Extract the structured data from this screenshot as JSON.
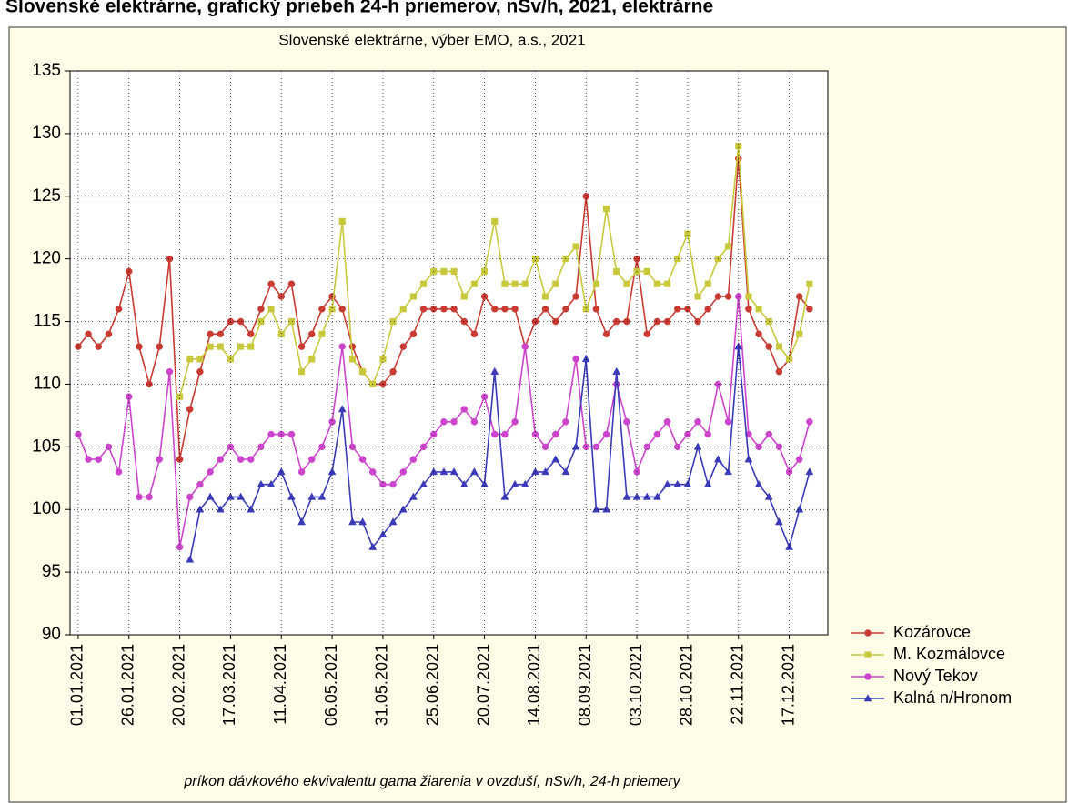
{
  "chart_data": {
    "type": "line",
    "page_title": "Slovenské elektrárne, grafický priebeh 24-h priemerov, nSv/h, 2021, elektrárne",
    "title": "Slovenské elektrárne, výber EMO, a.s., 2021",
    "xlabel": "príkon dávkového ekvivalentu gama žiarenia v ovzduší, nSv/h, 24-h priemery",
    "x": [
      "2021-01-01",
      "2021-01-06",
      "2021-01-11",
      "2021-01-16",
      "2021-01-21",
      "2021-01-26",
      "2021-01-31",
      "2021-02-05",
      "2021-02-10",
      "2021-02-15",
      "2021-02-20",
      "2021-02-25",
      "2021-03-02",
      "2021-03-07",
      "2021-03-12",
      "2021-03-17",
      "2021-03-22",
      "2021-03-27",
      "2021-04-01",
      "2021-04-06",
      "2021-04-11",
      "2021-04-16",
      "2021-04-21",
      "2021-04-26",
      "2021-05-01",
      "2021-05-06",
      "2021-05-11",
      "2021-05-16",
      "2021-05-21",
      "2021-05-26",
      "2021-05-31",
      "2021-06-05",
      "2021-06-10",
      "2021-06-15",
      "2021-06-20",
      "2021-06-25",
      "2021-06-30",
      "2021-07-05",
      "2021-07-10",
      "2021-07-15",
      "2021-07-20",
      "2021-07-25",
      "2021-07-30",
      "2021-08-04",
      "2021-08-09",
      "2021-08-14",
      "2021-08-19",
      "2021-08-24",
      "2021-08-29",
      "2021-09-03",
      "2021-09-08",
      "2021-09-13",
      "2021-09-18",
      "2021-09-23",
      "2021-09-28",
      "2021-10-03",
      "2021-10-08",
      "2021-10-13",
      "2021-10-18",
      "2021-10-23",
      "2021-10-28",
      "2021-11-02",
      "2021-11-07",
      "2021-11-12",
      "2021-11-17",
      "2021-11-22",
      "2021-11-27",
      "2021-12-02",
      "2021-12-07",
      "2021-12-12",
      "2021-12-17",
      "2021-12-22",
      "2021-12-27"
    ],
    "series": [
      {
        "name": "Kozárovce",
        "color": "#c83a32",
        "marker": "circle",
        "values": [
          113,
          114,
          113,
          114,
          116,
          119,
          113,
          110,
          113,
          120,
          104,
          108,
          111,
          114,
          114,
          115,
          115,
          114,
          116,
          118,
          117,
          118,
          113,
          114,
          116,
          117,
          116,
          113,
          111,
          110,
          110,
          111,
          113,
          114,
          116,
          116,
          116,
          116,
          115,
          114,
          117,
          116,
          116,
          116,
          113,
          115,
          116,
          115,
          116,
          117,
          125,
          116,
          114,
          115,
          115,
          120,
          114,
          115,
          115,
          116,
          116,
          115,
          116,
          117,
          117,
          128,
          116,
          114,
          113,
          111,
          112,
          117,
          116
        ]
      },
      {
        "name": "M. Kozmálovce",
        "color": "#c8c83c",
        "marker": "square",
        "values": [
          null,
          null,
          null,
          null,
          null,
          null,
          null,
          null,
          null,
          null,
          109,
          112,
          112,
          113,
          113,
          112,
          113,
          113,
          115,
          116,
          114,
          115,
          111,
          112,
          114,
          116,
          123,
          112,
          111,
          110,
          112,
          115,
          116,
          117,
          118,
          119,
          119,
          119,
          117,
          118,
          119,
          123,
          118,
          118,
          118,
          120,
          117,
          118,
          120,
          121,
          116,
          118,
          124,
          119,
          118,
          119,
          119,
          118,
          118,
          120,
          122,
          117,
          118,
          120,
          121,
          129,
          117,
          116,
          115,
          113,
          112,
          114,
          118
        ]
      },
      {
        "name": "Nový Tekov",
        "color": "#cc44cc",
        "marker": "circle",
        "values": [
          106,
          104,
          104,
          105,
          103,
          109,
          101,
          101,
          104,
          111,
          97,
          101,
          102,
          103,
          104,
          105,
          104,
          104,
          105,
          106,
          106,
          106,
          103,
          104,
          105,
          107,
          113,
          105,
          104,
          103,
          102,
          102,
          103,
          104,
          105,
          106,
          107,
          107,
          108,
          107,
          109,
          106,
          106,
          107,
          113,
          106,
          105,
          106,
          107,
          112,
          105,
          105,
          106,
          110,
          107,
          103,
          105,
          106,
          107,
          105,
          106,
          107,
          106,
          110,
          107,
          117,
          106,
          105,
          106,
          105,
          103,
          104,
          107
        ]
      },
      {
        "name": "Kalná n/Hronom",
        "color": "#3a3ab8",
        "marker": "triangle",
        "values": [
          null,
          null,
          null,
          null,
          null,
          null,
          null,
          null,
          null,
          null,
          null,
          96,
          100,
          101,
          100,
          101,
          101,
          100,
          102,
          102,
          103,
          101,
          99,
          101,
          101,
          103,
          108,
          99,
          99,
          97,
          98,
          99,
          100,
          101,
          102,
          103,
          103,
          103,
          102,
          103,
          102,
          111,
          101,
          102,
          102,
          103,
          103,
          104,
          103,
          105,
          112,
          100,
          100,
          111,
          101,
          101,
          101,
          101,
          102,
          102,
          102,
          105,
          102,
          104,
          103,
          113,
          104,
          102,
          101,
          99,
          97,
          100,
          103
        ]
      }
    ],
    "xlim": [
      "2020-12-28",
      "2022-01-05"
    ],
    "xticks": [
      {
        "value": "2021-01-01",
        "label": "01.01.2021"
      },
      {
        "value": "2021-01-26",
        "label": "26.01.2021"
      },
      {
        "value": "2021-02-20",
        "label": "20.02.2021"
      },
      {
        "value": "2021-03-17",
        "label": "17.03.2021"
      },
      {
        "value": "2021-04-11",
        "label": "11.04.2021"
      },
      {
        "value": "2021-05-06",
        "label": "06.05.2021"
      },
      {
        "value": "2021-05-31",
        "label": "31.05.2021"
      },
      {
        "value": "2021-06-25",
        "label": "25.06.2021"
      },
      {
        "value": "2021-07-20",
        "label": "20.07.2021"
      },
      {
        "value": "2021-08-14",
        "label": "14.08.2021"
      },
      {
        "value": "2021-09-08",
        "label": "08.09.2021"
      },
      {
        "value": "2021-10-03",
        "label": "03.10.2021"
      },
      {
        "value": "2021-10-28",
        "label": "28.10.2021"
      },
      {
        "value": "2021-11-22",
        "label": "22.11.2021"
      },
      {
        "value": "2021-12-17",
        "label": "17.12.2021"
      }
    ],
    "ylim": [
      90,
      135
    ],
    "yticks": [
      90,
      95,
      100,
      105,
      110,
      115,
      120,
      125,
      130,
      135
    ],
    "grid": true,
    "legend": "right"
  }
}
